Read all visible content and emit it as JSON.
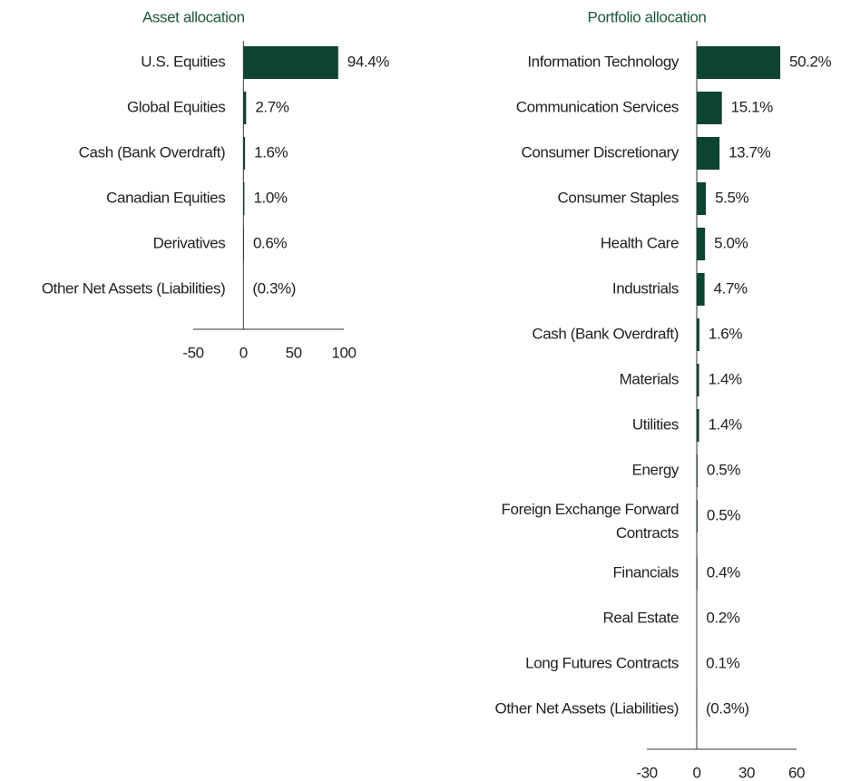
{
  "chart_data": [
    {
      "type": "bar",
      "orientation": "horizontal",
      "title": "Asset allocation",
      "categories": [
        "U.S. Equities",
        "Global Equities",
        "Cash (Bank Overdraft)",
        "Canadian Equities",
        "Derivatives",
        "Other Net Assets (Liabilities)"
      ],
      "values": [
        94.4,
        2.7,
        1.6,
        1.0,
        0.6,
        -0.3
      ],
      "value_labels": [
        "94.4%",
        "2.7%",
        "1.6%",
        "1.0%",
        "0.6%",
        "(0.3%)"
      ],
      "color": "#0d4430",
      "xlim": [
        -50,
        100
      ],
      "xticks": [
        -50,
        0,
        50,
        100
      ]
    },
    {
      "type": "bar",
      "orientation": "horizontal",
      "title": "Portfolio allocation",
      "categories": [
        "Information Technology",
        "Communication Services",
        "Consumer Discretionary",
        "Consumer Staples",
        "Health Care",
        "Industrials",
        "Cash (Bank Overdraft)",
        "Materials",
        "Utilities",
        "Energy",
        "Foreign Exchange Forward Contracts",
        "Financials",
        "Real Estate",
        "Long Futures Contracts",
        "Other Net Assets (Liabilities)"
      ],
      "values": [
        50.2,
        15.1,
        13.7,
        5.5,
        5.0,
        4.7,
        1.6,
        1.4,
        1.4,
        0.5,
        0.5,
        0.4,
        0.2,
        0.1,
        -0.3
      ],
      "value_labels": [
        "50.2%",
        "15.1%",
        "13.7%",
        "5.5%",
        "5.0%",
        "4.7%",
        "1.6%",
        "1.4%",
        "1.4%",
        "0.5%",
        "0.5%",
        "0.4%",
        "0.2%",
        "0.1%",
        "(0.3%)"
      ],
      "color": "#0d4430",
      "xlim": [
        -30,
        60
      ],
      "xticks": [
        -30,
        0,
        30,
        60
      ]
    }
  ]
}
